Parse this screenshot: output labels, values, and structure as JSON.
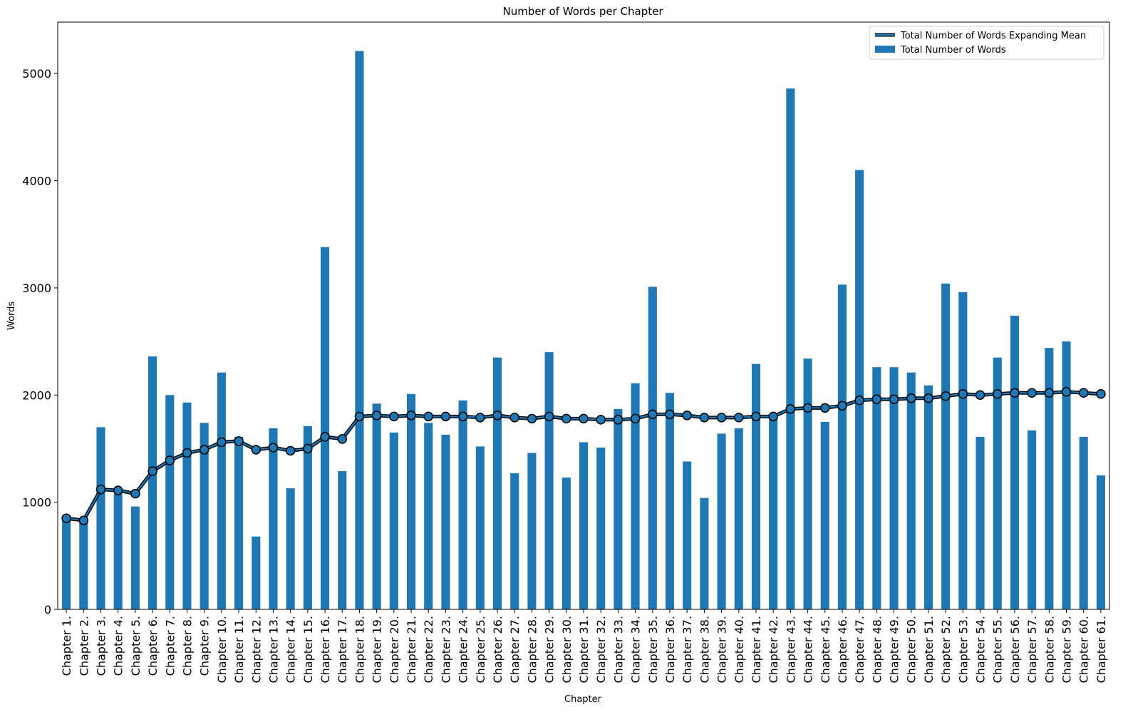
{
  "chart_data": {
    "type": "bar",
    "title": "Number of Words per Chapter",
    "xlabel": "Chapter",
    "ylabel": "Words",
    "ylim": [
      0,
      5480
    ],
    "yticks": [
      0,
      1000,
      2000,
      3000,
      4000,
      5000
    ],
    "legend_position": "top-right",
    "categories": [
      "Chapter 1.",
      "Chapter 2.",
      "Chapter 3.",
      "Chapter 4.",
      "Chapter 5.",
      "Chapter 6.",
      "Chapter 7.",
      "Chapter 8.",
      "Chapter 9.",
      "Chapter 10.",
      "Chapter 11.",
      "Chapter 12.",
      "Chapter 13.",
      "Chapter 14.",
      "Chapter 15.",
      "Chapter 16.",
      "Chapter 17.",
      "Chapter 18.",
      "Chapter 19.",
      "Chapter 20.",
      "Chapter 21.",
      "Chapter 22.",
      "Chapter 23.",
      "Chapter 24.",
      "Chapter 25.",
      "Chapter 26.",
      "Chapter 27.",
      "Chapter 28.",
      "Chapter 29.",
      "Chapter 30.",
      "Chapter 31.",
      "Chapter 32.",
      "Chapter 33.",
      "Chapter 34.",
      "Chapter 35.",
      "Chapter 36.",
      "Chapter 37.",
      "Chapter 38.",
      "Chapter 39.",
      "Chapter 40.",
      "Chapter 41.",
      "Chapter 42.",
      "Chapter 43.",
      "Chapter 44.",
      "Chapter 45.",
      "Chapter 46.",
      "Chapter 47.",
      "Chapter 48.",
      "Chapter 49.",
      "Chapter 50.",
      "Chapter 51.",
      "Chapter 52.",
      "Chapter 53.",
      "Chapter 54.",
      "Chapter 55.",
      "Chapter 56.",
      "Chapter 57.",
      "Chapter 58.",
      "Chapter 59.",
      "Chapter 60.",
      "Chapter 61."
    ],
    "series": [
      {
        "name": "Total Number of Words",
        "kind": "bar",
        "color": "#1f77b4",
        "values": [
          850,
          810,
          1700,
          1080,
          960,
          2360,
          2000,
          1930,
          1740,
          2210,
          1610,
          680,
          1690,
          1130,
          1710,
          3380,
          1290,
          5210,
          1920,
          1650,
          2010,
          1740,
          1630,
          1950,
          1520,
          2350,
          1270,
          1460,
          2400,
          1230,
          1560,
          1510,
          1870,
          2110,
          3010,
          2020,
          1380,
          1040,
          1640,
          1690,
          2290,
          1810,
          4860,
          2340,
          1750,
          3030,
          4100,
          2260,
          2260,
          2210,
          2090,
          3040,
          2960,
          1610,
          2350,
          2740,
          1670,
          2440,
          2500,
          1610,
          1250
        ]
      },
      {
        "name": "Total Number of Words Expanding Mean",
        "kind": "line",
        "color": "#1f77b4",
        "edge_color": "#000000",
        "values": [
          850,
          830,
          1120,
          1110,
          1080,
          1290,
          1390,
          1460,
          1490,
          1560,
          1570,
          1490,
          1510,
          1480,
          1500,
          1610,
          1590,
          1800,
          1810,
          1800,
          1810,
          1800,
          1800,
          1800,
          1790,
          1810,
          1790,
          1780,
          1800,
          1780,
          1780,
          1770,
          1770,
          1780,
          1820,
          1820,
          1810,
          1790,
          1790,
          1790,
          1800,
          1800,
          1870,
          1880,
          1880,
          1900,
          1950,
          1960,
          1960,
          1970,
          1970,
          1990,
          2010,
          2000,
          2010,
          2020,
          2020,
          2020,
          2030,
          2020,
          2010
        ]
      }
    ]
  }
}
